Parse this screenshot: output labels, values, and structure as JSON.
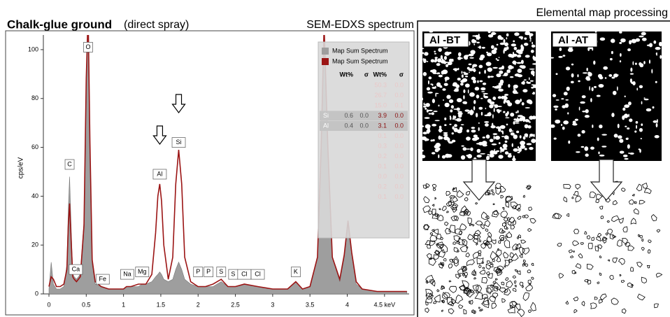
{
  "chart_data": {
    "type": "line",
    "title": "Chalk-glue ground",
    "subtitle": "(direct spray)",
    "header": "SEM-EDXS spectrum",
    "y_label": "cps/eV",
    "xlim": [
      -0.075,
      4.83
    ],
    "ylim": [
      0,
      106
    ],
    "xticks": [
      0,
      0.5,
      1,
      1.5,
      2,
      2.5,
      3,
      3.5,
      4,
      {
        "value": 4.5,
        "label": "4.5 keV"
      }
    ],
    "yticks": [
      0,
      20,
      40,
      60,
      80,
      100
    ],
    "x": [
      0,
      0.03,
      0.06,
      0.1,
      0.15,
      0.2,
      0.24,
      0.26,
      0.277,
      0.3,
      0.32,
      0.34,
      0.37,
      0.42,
      0.47,
      0.5,
      0.525,
      0.55,
      0.58,
      0.62,
      0.7,
      0.8,
      0.9,
      1.0,
      1.04,
      1.1,
      1.2,
      1.25,
      1.3,
      1.38,
      1.43,
      1.46,
      1.486,
      1.51,
      1.54,
      1.6,
      1.66,
      1.7,
      1.74,
      1.78,
      1.82,
      1.9,
      2.0,
      2.1,
      2.2,
      2.31,
      2.4,
      2.5,
      2.62,
      2.8,
      3.0,
      3.2,
      3.31,
      3.4,
      3.5,
      3.6,
      3.65,
      3.69,
      3.74,
      3.8,
      3.9,
      3.96,
      4.01,
      4.06,
      4.12,
      4.2,
      4.4,
      4.6,
      4.8
    ],
    "series": [
      {
        "name": "Map Sum Spectrum",
        "color": "#9e9e9e",
        "fill": true,
        "values": [
          2,
          13,
          4,
          2,
          2,
          3,
          12,
          35,
          48,
          25,
          8,
          7,
          6,
          8,
          30,
          90,
          115,
          60,
          12,
          4,
          3,
          2,
          2,
          2,
          3,
          3,
          3,
          4,
          4,
          5,
          7,
          8,
          9,
          8,
          6,
          5,
          6,
          10,
          13,
          10,
          6,
          4,
          3,
          3,
          3,
          5,
          3,
          3,
          4,
          3,
          2,
          2,
          5,
          2,
          3,
          15,
          60,
          110,
          60,
          15,
          5,
          15,
          28,
          16,
          4,
          2,
          1,
          1,
          1
        ]
      },
      {
        "name": "Map Sum Spectrum",
        "color": "#9b1414",
        "fill": false,
        "values": [
          3,
          7,
          6,
          3,
          3,
          4,
          10,
          28,
          37,
          20,
          7,
          6,
          5,
          7,
          28,
          88,
          115,
          62,
          14,
          5,
          3,
          2,
          2,
          2,
          3,
          3,
          4,
          4,
          4,
          8,
          25,
          40,
          45,
          38,
          20,
          6,
          15,
          45,
          59,
          45,
          15,
          5,
          3,
          3,
          4,
          6,
          3,
          3,
          4,
          3,
          2,
          2,
          5,
          2,
          3,
          15,
          60,
          110,
          60,
          15,
          6,
          16,
          30,
          17,
          5,
          2,
          1,
          1,
          1
        ]
      }
    ],
    "annotations": [
      {
        "text": "C",
        "x": 0.277,
        "y": 53
      },
      {
        "text": "Ca",
        "x": 0.36,
        "y": 10
      },
      {
        "text": "O",
        "x": 0.525,
        "y": 101
      },
      {
        "text": "Fe",
        "x": 0.72,
        "y": 6
      },
      {
        "text": "Na",
        "x": 1.05,
        "y": 8
      },
      {
        "text": "Mg",
        "x": 1.25,
        "y": 9
      },
      {
        "text": "Al",
        "x": 1.486,
        "y": 49
      },
      {
        "text": "Si",
        "x": 1.74,
        "y": 62
      },
      {
        "text": "P",
        "x": 2.0,
        "y": 9
      },
      {
        "text": "P",
        "x": 2.14,
        "y": 9
      },
      {
        "text": "S",
        "x": 2.31,
        "y": 9
      },
      {
        "text": "S",
        "x": 2.47,
        "y": 8
      },
      {
        "text": "Cl",
        "x": 2.62,
        "y": 8
      },
      {
        "text": "Cl",
        "x": 2.8,
        "y": 8
      },
      {
        "text": "K",
        "x": 3.31,
        "y": 9
      }
    ],
    "table": {
      "headers": [
        "Wt%",
        "σ",
        "Wt%",
        "σ"
      ],
      "rows": [
        {
          "faded": true,
          "cells": [
            "50.3",
            "0.0"
          ]
        },
        {
          "faded": true,
          "cells": [
            "26.7",
            "0.0"
          ]
        },
        {
          "faded": true,
          "cells": [
            "15.0",
            "0.1"
          ]
        },
        {
          "faded": false,
          "cells": [
            "Si",
            "0.6",
            "0.0",
            "3.9",
            "0.0"
          ]
        },
        {
          "faded": false,
          "cells": [
            "Al",
            "0.4",
            "0.0",
            "3.1",
            "0.0"
          ]
        },
        {
          "faded": true,
          "cells": [
            "0.1",
            "0.0"
          ]
        },
        {
          "faded": true,
          "cells": [
            "0.3",
            "0.0"
          ]
        },
        {
          "faded": true,
          "cells": [
            "0.2",
            "0.0"
          ]
        },
        {
          "faded": true,
          "cells": [
            "0.1",
            "0.0"
          ]
        },
        {
          "faded": true,
          "cells": [
            "0.0",
            "0.0"
          ]
        },
        {
          "faded": true,
          "cells": [
            "0.2",
            "0.0"
          ]
        },
        {
          "faded": true,
          "cells": [
            "0.1",
            "0.0"
          ]
        }
      ]
    }
  },
  "maps": {
    "title": "Elemental map processing",
    "panels": [
      "Al -BT",
      "Al -AT"
    ]
  }
}
